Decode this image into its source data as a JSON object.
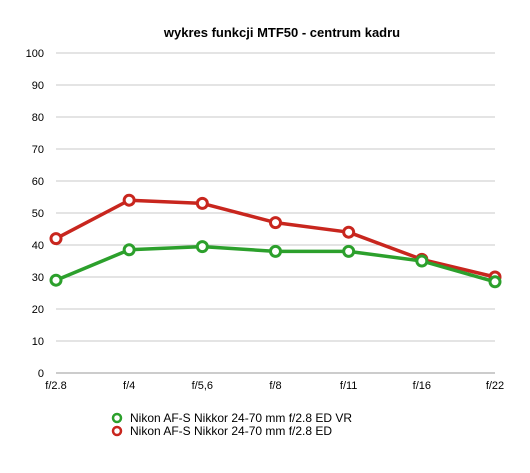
{
  "chart_data": {
    "type": "line",
    "title": "wykres funkcji MTF50 - centrum kadru",
    "xlabel": "",
    "ylabel": "",
    "categories": [
      "f/2.8",
      "f/4",
      "f/5,6",
      "f/8",
      "f/11",
      "f/16",
      "f/22"
    ],
    "ylim": [
      0,
      100
    ],
    "yticks": [
      0,
      10,
      20,
      30,
      40,
      50,
      60,
      70,
      80,
      90,
      100
    ],
    "grid": true,
    "legend": "bottom",
    "series": [
      {
        "name": "Nikon AF-S Nikkor 24-70 mm f/2.8 ED VR",
        "color": "#2ca02c",
        "values": [
          29,
          38.5,
          39.5,
          38,
          38,
          35,
          28.5
        ]
      },
      {
        "name": "Nikon AF-S Nikkor 24-70 mm f/2.8 ED",
        "color": "#c8261e",
        "values": [
          42,
          54,
          53,
          47,
          44,
          35.5,
          30
        ]
      }
    ]
  }
}
